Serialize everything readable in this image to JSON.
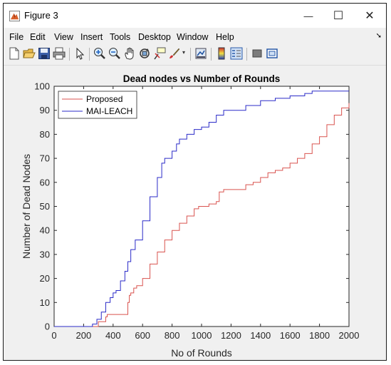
{
  "window": {
    "title": "Figure 3",
    "minimize": "—",
    "maximize": "☐",
    "close": "✕"
  },
  "menu": [
    "File",
    "Edit",
    "View",
    "Insert",
    "Tools",
    "Desktop",
    "Window",
    "Help"
  ],
  "toolbar": [
    "new-figure-icon",
    "open-file-icon",
    "save-icon",
    "print-icon",
    "pointer-icon",
    "zoom-in-icon",
    "zoom-out-icon",
    "pan-icon",
    "rotate-icon",
    "data-cursor-icon",
    "brush-icon",
    "link-plot-icon",
    "colorbar-icon",
    "legend-icon",
    "hide-plot-tools-icon",
    "show-plot-tools-icon"
  ],
  "chart_data": {
    "type": "line",
    "title": "Dead nodes vs Number of Rounds",
    "xlabel": "No of Rounds",
    "ylabel": "Number of Dead Nodes",
    "xlim": [
      0,
      2000
    ],
    "ylim": [
      0,
      100
    ],
    "xticks": [
      0,
      200,
      400,
      600,
      800,
      1000,
      1200,
      1400,
      1600,
      1800,
      2000
    ],
    "yticks": [
      0,
      10,
      20,
      30,
      40,
      50,
      60,
      70,
      80,
      90,
      100
    ],
    "grid": false,
    "legend": "top-left",
    "series": [
      {
        "name": "Proposed",
        "color": "#d9534f",
        "x": [
          0,
          270,
          300,
          310,
          350,
          360,
          420,
          480,
          500,
          510,
          520,
          540,
          560,
          600,
          650,
          700,
          750,
          800,
          850,
          900,
          950,
          980,
          1000,
          1050,
          1100,
          1120,
          1150,
          1200,
          1250,
          1300,
          1350,
          1400,
          1450,
          1500,
          1550,
          1600,
          1650,
          1700,
          1750,
          1800,
          1850,
          1900,
          1950,
          2000
        ],
        "y": [
          0,
          0,
          2,
          2,
          4,
          5,
          5,
          5,
          10,
          13,
          14,
          16,
          17,
          20,
          26,
          31,
          36,
          40,
          43,
          46,
          49,
          50,
          50,
          51,
          52,
          56,
          57,
          57,
          57,
          59,
          60,
          62,
          64,
          65,
          66,
          68,
          70,
          72,
          76,
          79,
          84,
          88,
          91,
          93
        ]
      },
      {
        "name": "MAI-LEACH",
        "color": "#2b2bc8",
        "x": [
          0,
          230,
          260,
          290,
          320,
          350,
          380,
          400,
          420,
          450,
          480,
          500,
          520,
          550,
          600,
          650,
          700,
          730,
          750,
          800,
          830,
          850,
          900,
          950,
          1000,
          1050,
          1100,
          1150,
          1200,
          1300,
          1400,
          1500,
          1600,
          1700,
          1750,
          1800,
          2000
        ],
        "y": [
          0,
          0,
          1,
          3,
          6,
          10,
          12,
          14,
          15,
          19,
          23,
          27,
          32,
          36,
          44,
          54,
          62,
          68,
          70,
          73,
          76,
          78,
          80,
          82,
          83,
          85,
          88,
          90,
          90,
          92,
          94,
          95,
          96,
          97,
          98,
          98,
          98
        ]
      }
    ]
  }
}
